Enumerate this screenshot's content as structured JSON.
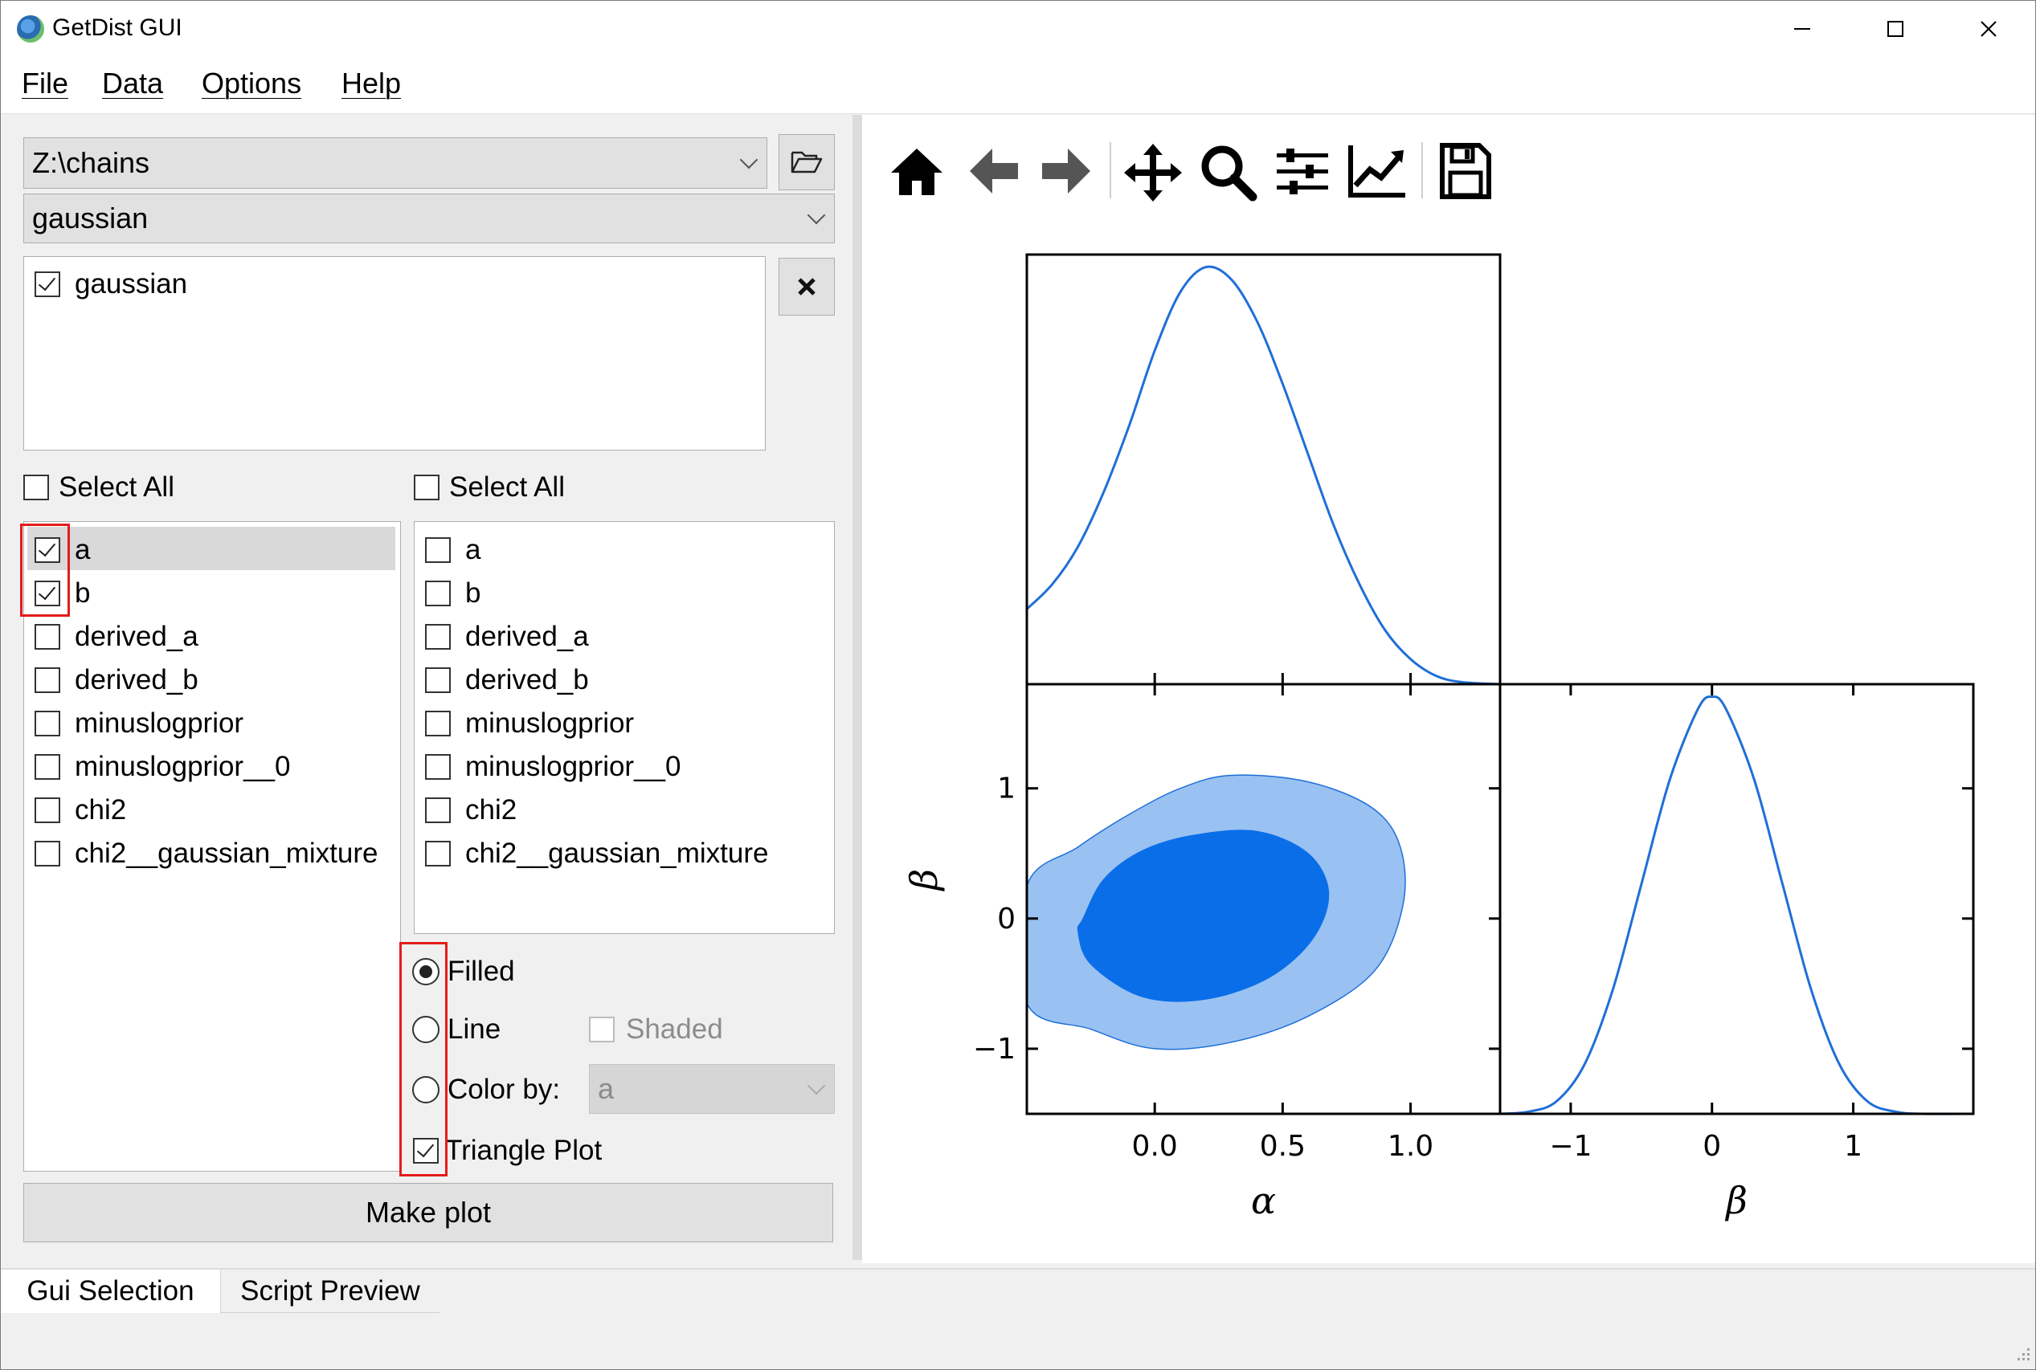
{
  "window": {
    "title": "GetDist GUI"
  },
  "menu": [
    "File",
    "Data",
    "Options",
    "Help"
  ],
  "left": {
    "directory": "Z:\\chains",
    "chain_root": "gaussian",
    "loaded_chains": [
      {
        "label": "gaussian",
        "checked": true
      }
    ],
    "x_params": {
      "select_all_label": "Select All",
      "items": [
        {
          "label": "a",
          "checked": true
        },
        {
          "label": "b",
          "checked": true
        },
        {
          "label": "derived_a",
          "checked": false
        },
        {
          "label": "derived_b",
          "checked": false
        },
        {
          "label": "minuslogprior",
          "checked": false
        },
        {
          "label": "minuslogprior__0",
          "checked": false
        },
        {
          "label": "chi2",
          "checked": false
        },
        {
          "label": "chi2__gaussian_mixture",
          "checked": false
        }
      ]
    },
    "y_params": {
      "select_all_label": "Select All",
      "items": [
        {
          "label": "a",
          "checked": false
        },
        {
          "label": "b",
          "checked": false
        },
        {
          "label": "derived_a",
          "checked": false
        },
        {
          "label": "derived_b",
          "checked": false
        },
        {
          "label": "minuslogprior",
          "checked": false
        },
        {
          "label": "minuslogprior__0",
          "checked": false
        },
        {
          "label": "chi2",
          "checked": false
        },
        {
          "label": "chi2__gaussian_mixture",
          "checked": false
        }
      ]
    },
    "options": {
      "filled": "Filled",
      "line": "Line",
      "shaded": "Shaded",
      "color_by": "Color by:",
      "color_by_value": "a",
      "triangle": "Triangle Plot",
      "selected": "Filled"
    },
    "make_plot": "Make plot"
  },
  "tabs": [
    "Gui Selection",
    "Script Preview"
  ],
  "toolbar_icons": [
    "home-icon",
    "back-arrow-icon",
    "forward-arrow-icon",
    "pan-icon",
    "zoom-icon",
    "configure-subplots-icon",
    "edit-axis-icon",
    "save-icon"
  ],
  "chart_data": {
    "type": "triangle",
    "colors": {
      "line": "#1f6fd8",
      "inner_fill": "#0a6ee8",
      "outer_fill": "#99c2f2"
    },
    "panels": [
      {
        "name": "alpha-marginal",
        "type": "line",
        "xlim": [
          -0.5,
          1.35
        ],
        "x": [
          -0.5,
          -0.4,
          -0.3,
          -0.2,
          -0.1,
          0.0,
          0.1,
          0.2,
          0.3,
          0.4,
          0.5,
          0.6,
          0.7,
          0.8,
          0.9,
          1.0,
          1.1,
          1.2,
          1.35
        ],
        "y": [
          0.18,
          0.24,
          0.33,
          0.46,
          0.62,
          0.8,
          0.94,
          1.0,
          0.97,
          0.87,
          0.72,
          0.55,
          0.38,
          0.24,
          0.13,
          0.06,
          0.02,
          0.005,
          0.0
        ]
      },
      {
        "name": "alpha-beta-2d",
        "type": "contour",
        "xlim": [
          -0.5,
          1.35
        ],
        "ylim": [
          -1.5,
          1.8
        ],
        "x_ticks": [
          0.0,
          0.5,
          1.0
        ],
        "x_tick_labels": [
          "0.0",
          "0.5",
          "1.0"
        ],
        "y_ticks": [
          -1,
          0,
          1
        ],
        "y_tick_labels": [
          "−1",
          "0",
          "1"
        ],
        "xlabel": "α",
        "ylabel": "β",
        "contours": [
          {
            "level": "95%",
            "x": [
              -0.5,
              -0.3,
              -0.1,
              0.1,
              0.3,
              0.6,
              0.85,
              0.96,
              0.97,
              0.86,
              0.6,
              0.3,
              0.0,
              -0.25,
              -0.5
            ],
            "y": [
              0.25,
              0.55,
              0.8,
              1.0,
              1.1,
              1.05,
              0.85,
              0.55,
              0.1,
              -0.4,
              -0.75,
              -0.95,
              -1.0,
              -0.85,
              -0.65
            ]
          },
          {
            "level": "68%",
            "x": [
              -0.28,
              -0.2,
              -0.05,
              0.15,
              0.4,
              0.6,
              0.68,
              0.62,
              0.45,
              0.2,
              -0.05,
              -0.25,
              -0.3
            ],
            "y": [
              0.0,
              0.3,
              0.52,
              0.64,
              0.67,
              0.5,
              0.2,
              -0.15,
              -0.45,
              -0.62,
              -0.6,
              -0.35,
              -0.1
            ]
          }
        ]
      },
      {
        "name": "beta-marginal",
        "type": "line",
        "xlim": [
          -1.5,
          1.85
        ],
        "x_ticks": [
          -1,
          0,
          1
        ],
        "x_tick_labels": [
          "−1",
          "0",
          "1"
        ],
        "xlabel": "β",
        "x": [
          -1.5,
          -1.3,
          -1.1,
          -0.9,
          -0.7,
          -0.5,
          -0.3,
          -0.1,
          0.0,
          0.1,
          0.3,
          0.5,
          0.7,
          0.9,
          1.1,
          1.3,
          1.5,
          1.85
        ],
        "y": [
          0.0,
          0.005,
          0.03,
          0.12,
          0.3,
          0.55,
          0.8,
          0.97,
          1.0,
          0.97,
          0.8,
          0.55,
          0.3,
          0.12,
          0.03,
          0.005,
          0.0,
          0.0
        ]
      }
    ]
  }
}
